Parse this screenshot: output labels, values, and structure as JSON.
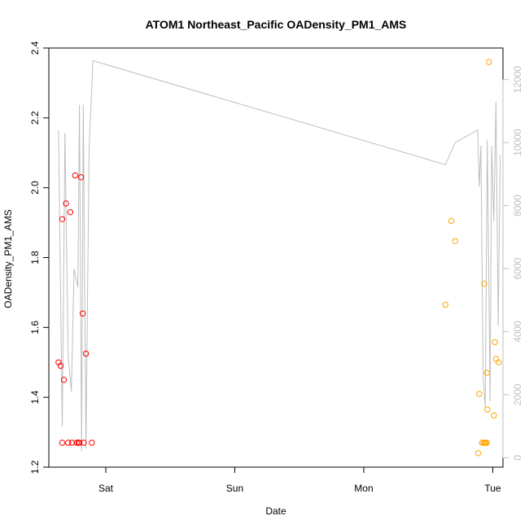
{
  "chart_data": {
    "type": "scatter",
    "title": "ATOM1 Northeast_Pacific OADensity_PM1_AMS",
    "xlabel": "Date",
    "ylabel": "OADensity_PM1_AMS",
    "x_ticks": [
      {
        "label": "Sat",
        "value": 0
      },
      {
        "label": "Sun",
        "value": 24
      },
      {
        "label": "Mon",
        "value": 48
      },
      {
        "label": "Tue",
        "value": 72
      }
    ],
    "xlim": [
      -10.6,
      73.9
    ],
    "ylim": [
      1.2,
      2.4
    ],
    "y_ticks": [
      1.2,
      1.4,
      1.6,
      1.8,
      2.0,
      2.2,
      2.4
    ],
    "y2lim": [
      -300,
      13000
    ],
    "y2_ticks": [
      0,
      2000,
      4000,
      6000,
      8000,
      10000,
      12000
    ],
    "grid": false,
    "legend": "none",
    "colors": {
      "series_red": "#ff0000",
      "series_orange": "#ffa500",
      "line": "#bebebe",
      "right_axis": "#bebebe"
    },
    "series": [
      {
        "color": "#ff0000",
        "points": [
          [
            -8.8,
            1.5
          ],
          [
            -8.4,
            1.49
          ],
          [
            -8.1,
            1.91
          ],
          [
            -7.8,
            1.45
          ],
          [
            -7.4,
            1.955
          ],
          [
            -6.6,
            1.93
          ],
          [
            -5.7,
            2.035
          ],
          [
            -4.6,
            2.03
          ],
          [
            -4.3,
            1.64
          ],
          [
            -3.7,
            1.525
          ],
          [
            -8.1,
            1.27
          ],
          [
            -7.0,
            1.27
          ],
          [
            -6.3,
            1.27
          ],
          [
            -5.4,
            1.27
          ],
          [
            -5.1,
            1.27
          ],
          [
            -4.9,
            1.27
          ],
          [
            -4.1,
            1.27
          ],
          [
            -2.6,
            1.27
          ]
        ]
      },
      {
        "color": "#ffa500",
        "points": [
          [
            63.2,
            1.665
          ],
          [
            64.3,
            1.905
          ],
          [
            65.0,
            1.847
          ],
          [
            69.5,
            1.41
          ],
          [
            69.3,
            1.24
          ],
          [
            70.0,
            1.27
          ],
          [
            70.3,
            1.27
          ],
          [
            70.5,
            1.27
          ],
          [
            70.7,
            1.27
          ],
          [
            70.9,
            1.27
          ],
          [
            70.4,
            1.725
          ],
          [
            70.9,
            1.47
          ],
          [
            71.0,
            1.365
          ],
          [
            71.3,
            2.36
          ],
          [
            72.2,
            1.348
          ],
          [
            72.4,
            1.558
          ],
          [
            72.6,
            1.51
          ],
          [
            73.1,
            1.5
          ]
        ]
      }
    ],
    "line_series": {
      "axis": "right",
      "color": "#bebebe",
      "points": [
        [
          -8.8,
          10400
        ],
        [
          -8.1,
          1000
        ],
        [
          -7.6,
          10300
        ],
        [
          -7.0,
          3200
        ],
        [
          -6.4,
          2100
        ],
        [
          -5.9,
          6000
        ],
        [
          -5.2,
          5400
        ],
        [
          -4.9,
          11200
        ],
        [
          -4.5,
          200
        ],
        [
          -4.2,
          11200
        ],
        [
          -3.7,
          300
        ],
        [
          -3.1,
          9800
        ],
        [
          -2.4,
          12600
        ],
        [
          63.2,
          9300
        ],
        [
          65.0,
          10000
        ],
        [
          69.2,
          10400
        ],
        [
          69.5,
          8600
        ],
        [
          69.8,
          9900
        ],
        [
          70.2,
          2600
        ],
        [
          70.6,
          1600
        ],
        [
          71.0,
          10100
        ],
        [
          71.5,
          1800
        ],
        [
          71.8,
          9900
        ],
        [
          72.2,
          7500
        ],
        [
          72.6,
          11300
        ],
        [
          73.0,
          4200
        ],
        [
          73.4,
          9600
        ]
      ]
    }
  }
}
